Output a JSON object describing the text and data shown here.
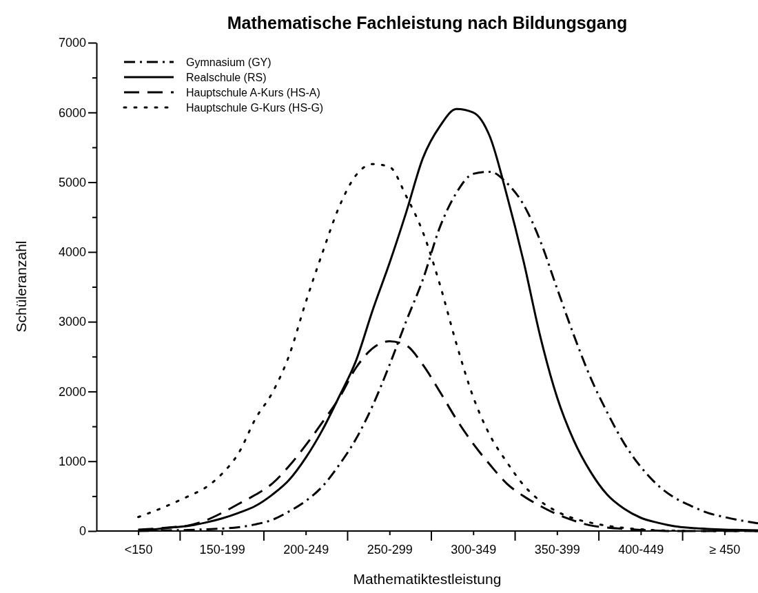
{
  "chart_data": {
    "type": "line",
    "title": "Mathematische Fachleistung nach Bildungsgang",
    "xlabel": "Mathematiktestleistung",
    "ylabel": "Schüleranzahl",
    "categories": [
      null,
      null,
      "<150",
      null,
      null,
      null,
      null,
      "150-199",
      null,
      null,
      null,
      null,
      "200-249",
      null,
      null,
      null,
      null,
      "250-299",
      null,
      null,
      null,
      null,
      "300-349",
      null,
      null,
      null,
      null,
      "350-399",
      null,
      null,
      null,
      null,
      "400-449",
      null,
      null,
      null,
      null,
      "≥ 450",
      null,
      null
    ],
    "ylim": [
      0,
      7000
    ],
    "yticks": [
      0,
      {
        "value": 500,
        "label": null
      },
      1000,
      {
        "value": 1500,
        "label": null
      },
      2000,
      {
        "value": 2500,
        "label": null
      },
      3000,
      {
        "value": 3500,
        "label": null
      },
      4000,
      {
        "value": 4500,
        "label": null
      },
      5000,
      {
        "value": 5500,
        "label": null
      },
      6000,
      {
        "value": 6500,
        "label": null
      },
      7000
    ],
    "legend": "top left",
    "marker": "none",
    "series": [
      {
        "name": "Gymnasium (GY)",
        "color": "#000000",
        "line_style": "dashdot",
        "values": [
          null,
          null,
          0,
          5,
          10,
          15,
          25,
          35,
          55,
          95,
          160,
          280,
          430,
          640,
          950,
          1320,
          1800,
          2380,
          3010,
          3610,
          4350,
          4850,
          5120,
          5150,
          4990,
          4680,
          4160,
          3480,
          2810,
          2200,
          1700,
          1260,
          920,
          660,
          480,
          360,
          260,
          200,
          150,
          110
        ]
      },
      {
        "name": "Realschule (RS)",
        "color": "#000000",
        "line_style": "solid",
        "values": [
          null,
          null,
          10,
          25,
          50,
          75,
          120,
          180,
          260,
          360,
          520,
          730,
          1050,
          1450,
          1930,
          2440,
          3170,
          3840,
          4570,
          5350,
          5800,
          6050,
          6000,
          5650,
          4820,
          3870,
          2790,
          1920,
          1300,
          850,
          520,
          320,
          190,
          120,
          70,
          45,
          30,
          20,
          15,
          10
        ]
      },
      {
        "name": "Hauptschule A-Kurs (HS-A)",
        "color": "#000000",
        "line_style": "dashed",
        "values": [
          null,
          null,
          20,
          35,
          55,
          80,
          150,
          260,
          390,
          520,
          680,
          930,
          1230,
          1560,
          1910,
          2340,
          2620,
          2720,
          2660,
          2380,
          2000,
          1600,
          1250,
          950,
          680,
          500,
          360,
          240,
          150,
          80,
          50,
          30,
          15,
          5,
          0,
          0,
          0,
          0,
          0,
          0
        ]
      },
      {
        "name": "Hauptschule G-Kurs (HS-G)",
        "color": "#000000",
        "line_style": "dotted",
        "values": [
          null,
          null,
          200,
          290,
          390,
          500,
          620,
          820,
          1120,
          1610,
          1980,
          2510,
          3280,
          3990,
          4650,
          5100,
          5260,
          5220,
          4800,
          4280,
          3540,
          2680,
          1920,
          1370,
          990,
          660,
          430,
          280,
          180,
          120,
          75,
          45,
          25,
          10,
          5,
          0,
          0,
          0,
          0,
          0
        ]
      }
    ]
  }
}
